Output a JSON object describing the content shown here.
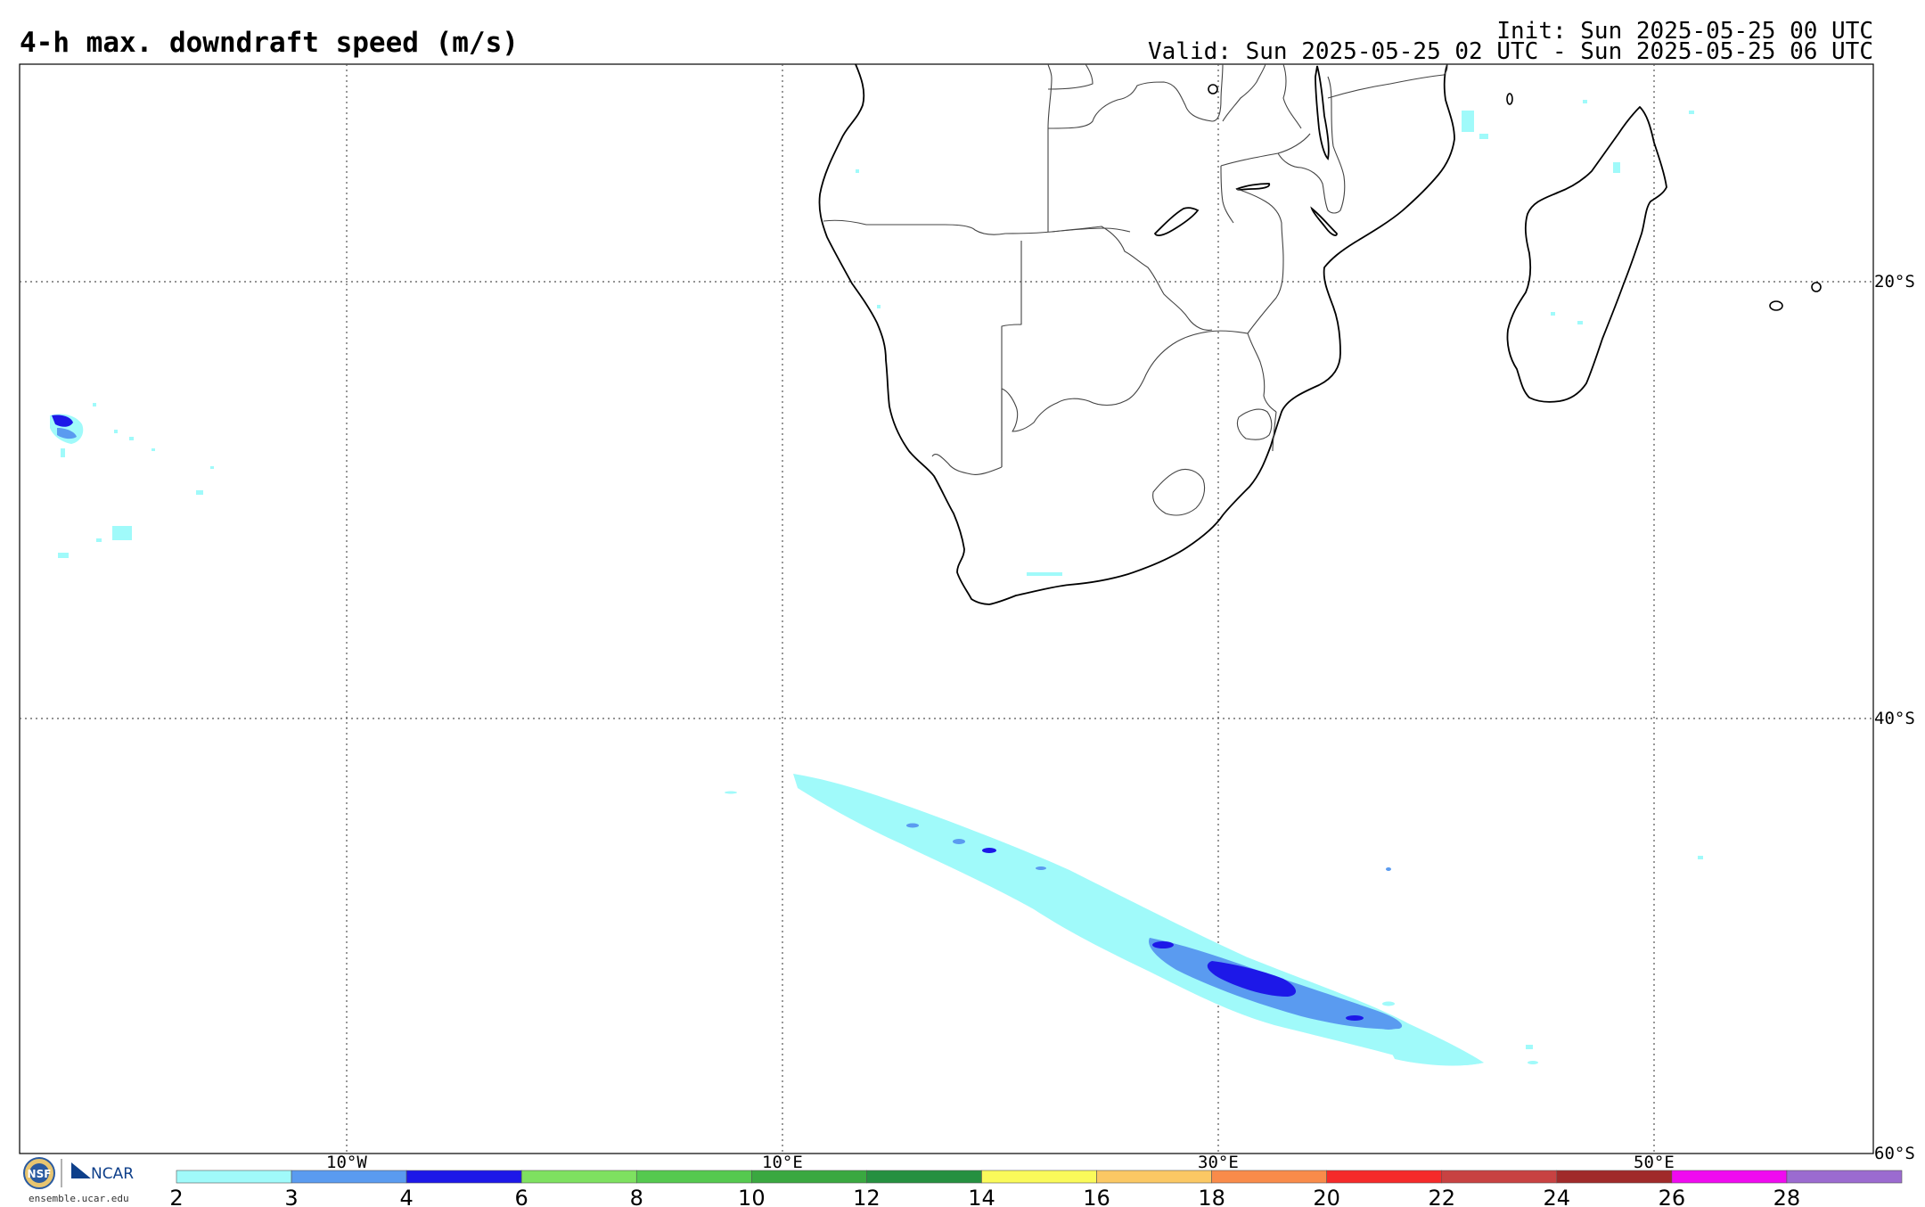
{
  "header": {
    "title": "4-h max. downdraft speed (m/s)",
    "init": "Init: Sun 2025-05-25 00 UTC",
    "valid": "Valid: Sun 2025-05-25 02 UTC - Sun 2025-05-25 06 UTC"
  },
  "map": {
    "lon_labels": [
      "10°W",
      "10°E",
      "30°E",
      "50°E"
    ],
    "lat_labels": [
      "20°S",
      "40°S",
      "60°S"
    ],
    "lon_values": [
      -10,
      10,
      30,
      50
    ],
    "lat_values": [
      -20,
      -40,
      -60
    ],
    "region": "Southern Africa and South Atlantic / Indian Ocean",
    "features": [
      "Africa coastline",
      "Madagascar",
      "country borders",
      "Lake Malawi",
      "Lake Kariba",
      "Lesotho",
      "Eswatini"
    ]
  },
  "colorbar": {
    "ticks": [
      "2",
      "3",
      "4",
      "6",
      "8",
      "10",
      "12",
      "14",
      "16",
      "18",
      "20",
      "22",
      "24",
      "26",
      "28"
    ],
    "colors": [
      "#a0fafa",
      "#5a9bf0",
      "#1d18e8",
      "#7ee160",
      "#55c94f",
      "#3aa840",
      "#259040",
      "#fafa5a",
      "#fbc864",
      "#f98b4a",
      "#f52a2a",
      "#c84242",
      "#a02a2a",
      "#f00af0",
      "#9b6bd0"
    ]
  },
  "footer": {
    "nsf_label": "NSF",
    "ncar_label": "NCAR",
    "site": "ensemble.ucar.edu"
  },
  "colors": {
    "grid": "#555555",
    "land": "#000000",
    "cyan": "#a0fafa",
    "light_blue": "#5a9bf0",
    "blue": "#1d18e8"
  }
}
